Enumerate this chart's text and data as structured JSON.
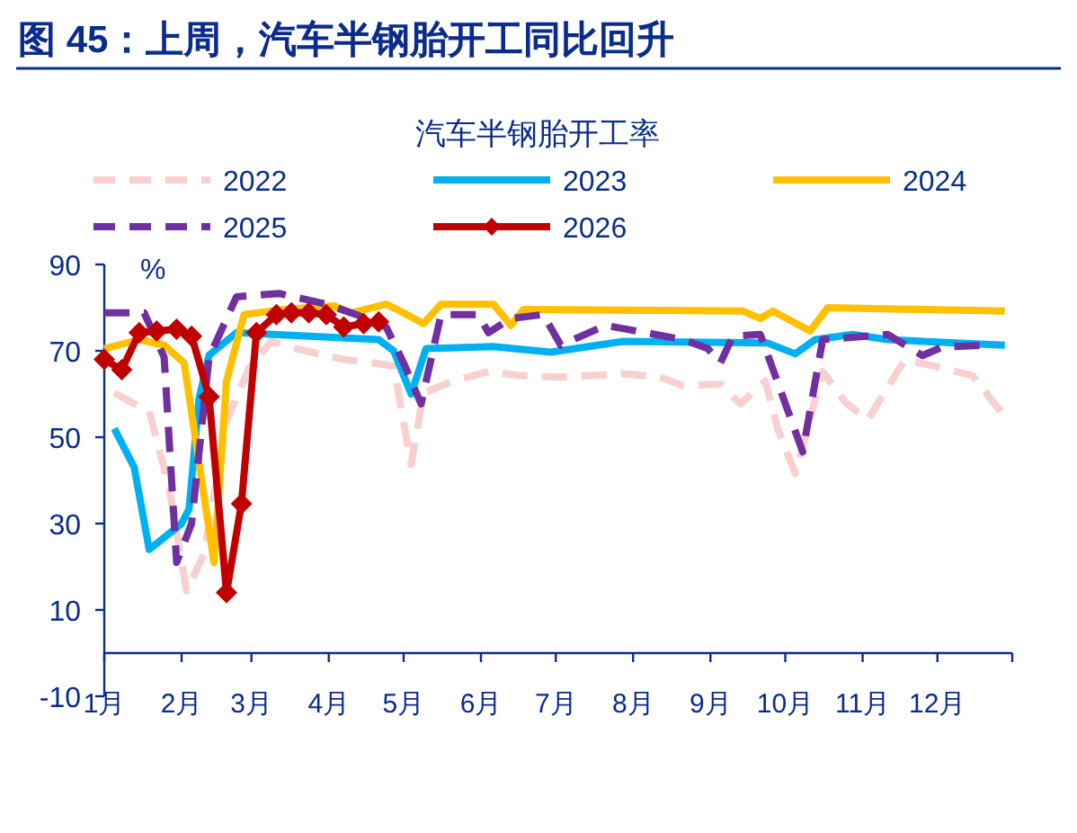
{
  "chart_data": {
    "type": "line",
    "title": "图 45：上周，汽车半钢胎开工同比回升",
    "subtitle": "汽车半钢胎开工率",
    "ylabel": "%",
    "xlim": [
      "--01-01",
      "--12-31"
    ],
    "xticks": [
      {
        "value": "--01-01",
        "label": "1月"
      },
      {
        "value": "--02-01",
        "label": "2月"
      },
      {
        "value": "--03-01",
        "label": "3月"
      },
      {
        "value": "--04-01",
        "label": "4月"
      },
      {
        "value": "--05-01",
        "label": "5月"
      },
      {
        "value": "--06-01",
        "label": "6月"
      },
      {
        "value": "--07-01",
        "label": "7月"
      },
      {
        "value": "--08-01",
        "label": "8月"
      },
      {
        "value": "--09-01",
        "label": "9月"
      },
      {
        "value": "--10-01",
        "label": "10月"
      },
      {
        "value": "--11-01",
        "label": "11月"
      },
      {
        "value": "--12-01",
        "label": "12月"
      },
      {
        "value": "--12-31",
        "label": null
      }
    ],
    "ylim": [
      -10,
      90
    ],
    "yticks": [
      -10,
      10,
      30,
      50,
      70,
      90
    ],
    "legend": "top",
    "series": [
      {
        "name": "2022",
        "color": "#f8d0d0",
        "line_style": "dashed",
        "x": [
          "--01-05",
          "--01-19",
          "--01-27",
          "--02-03",
          "--02-10",
          "--02-19",
          "--02-28",
          "--03-09",
          "--03-19",
          "--04-03",
          "--04-07",
          "--04-19",
          "--04-27",
          "--05-04",
          "--05-09",
          "--05-21",
          "--06-04",
          "--06-16",
          "--07-03",
          "--07-28",
          "--08-12",
          "--08-21",
          "--09-05",
          "--09-13",
          "--09-23",
          "--09-28",
          "--10-05",
          "--10-16",
          "--10-25",
          "--11-03",
          "--11-18",
          "--11-30",
          "--12-15",
          "--12-29"
        ],
        "values": [
          60.2,
          56,
          38.4,
          14.4,
          23,
          53.6,
          66,
          72.2,
          70.5,
          68.5,
          68,
          67.2,
          66.4,
          43.7,
          60.2,
          63,
          65.2,
          64.3,
          63.9,
          64.7,
          63.9,
          61.9,
          62.3,
          57.7,
          63,
          52,
          41.6,
          65.2,
          58.1,
          54,
          68,
          66.4,
          64.3,
          54
        ]
      },
      {
        "name": "2023",
        "color": "#00b0f0",
        "line_style": "solid",
        "x": [
          "--01-05",
          "--01-13",
          "--01-19",
          "--02-01",
          "--02-04",
          "--02-08",
          "--02-12",
          "--02-23",
          "--04-21",
          "--04-27",
          "--05-04",
          "--05-10",
          "--06-06",
          "--06-29",
          "--07-28",
          "--09-24",
          "--10-05",
          "--10-13",
          "--10-28",
          "--11-11",
          "--12-28"
        ],
        "values": [
          52,
          43,
          24,
          30,
          33.4,
          59,
          69,
          74.2,
          72.6,
          70,
          60,
          70.5,
          71,
          69.7,
          72.2,
          71.8,
          69.3,
          72.6,
          73.8,
          72.6,
          71.3
        ]
      },
      {
        "name": "2024",
        "color": "#ffc000",
        "line_style": "solid",
        "x": [
          "--01-01",
          "--01-15",
          "--01-25",
          "--02-02",
          "--02-14",
          "--02-19",
          "--02-26",
          "--03-14",
          "--04-03",
          "--04-10",
          "--04-24",
          "--05-01",
          "--05-09",
          "--05-16",
          "--06-06",
          "--06-13",
          "--06-18",
          "--09-14",
          "--09-21",
          "--09-26",
          "--10-11",
          "--10-18",
          "--12-28"
        ],
        "values": [
          70.5,
          72.6,
          71.3,
          67.2,
          21,
          63,
          78.4,
          79.6,
          80.4,
          78.8,
          80.8,
          78.8,
          76.3,
          80.8,
          80.8,
          75.9,
          79.6,
          79.2,
          77.5,
          79.2,
          74.6,
          80,
          79.2
        ]
      },
      {
        "name": "2025",
        "color": "#7030a0",
        "line_style": "dashed",
        "x": [
          "--01-01",
          "--01-17",
          "--01-25",
          "--01-30",
          "--02-05",
          "--02-12",
          "--02-23",
          "--03-12",
          "--03-31",
          "--04-12",
          "--04-24",
          "--05-01",
          "--05-08",
          "--05-16",
          "--05-31",
          "--06-04",
          "--06-13",
          "--06-26",
          "--07-03",
          "--07-21",
          "--08-06",
          "--08-21",
          "--08-31",
          "--09-05",
          "--09-10",
          "--09-21",
          "--10-08",
          "--10-16",
          "--11-11",
          "--11-25",
          "--12-03",
          "--12-20"
        ],
        "values": [
          78.8,
          78.8,
          68.5,
          21,
          30,
          68.5,
          82.5,
          83.3,
          80.8,
          78.4,
          75.5,
          67.2,
          57.7,
          78.4,
          78.4,
          74.2,
          77.5,
          78.4,
          71.3,
          75.9,
          74.2,
          72.6,
          70.5,
          67.2,
          73.4,
          73.8,
          46.6,
          72.6,
          73.8,
          68.9,
          70.9,
          71.3
        ]
      },
      {
        "name": "2026",
        "color": "#c00000",
        "line_style": "solid",
        "marker": "diamond",
        "x": [
          "--01-01",
          "--01-08",
          "--01-15",
          "--01-22",
          "--01-30",
          "--02-05",
          "--02-12",
          "--02-19",
          "--02-25",
          "--03-03",
          "--03-11",
          "--03-17",
          "--03-24",
          "--03-31",
          "--04-07",
          "--04-15",
          "--04-21"
        ],
        "values": [
          68,
          65.6,
          74.2,
          74.6,
          75,
          73.4,
          59.4,
          14,
          34.6,
          74.2,
          78.4,
          78.8,
          78.8,
          78.4,
          75.5,
          76.3,
          76.7
        ]
      }
    ]
  }
}
